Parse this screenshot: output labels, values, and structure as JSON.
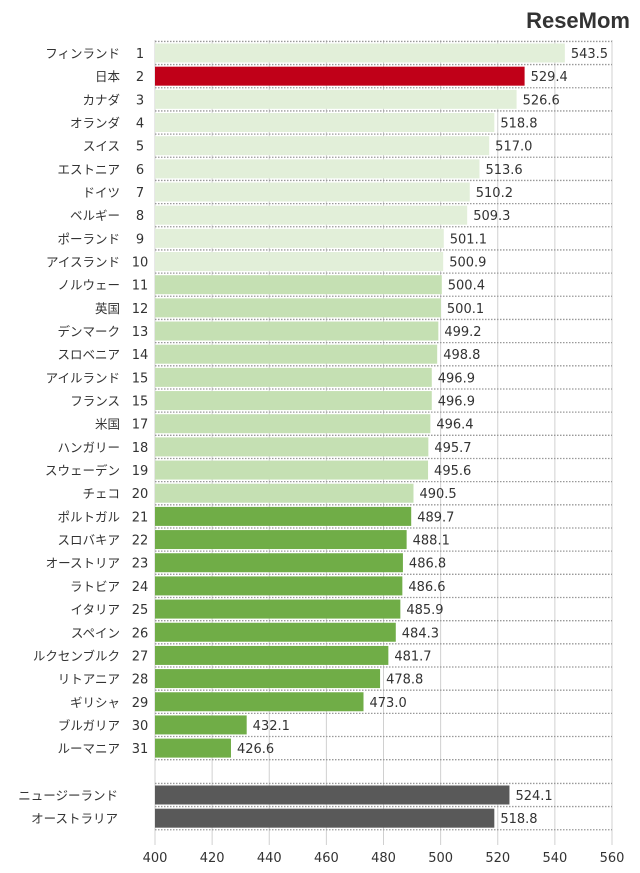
{
  "chart_data": {
    "type": "bar",
    "orientation": "horizontal",
    "xlim": [
      400,
      560
    ],
    "xticks": [
      400,
      420,
      440,
      460,
      480,
      500,
      520,
      540,
      560
    ],
    "grid": true,
    "colors": {
      "top": "#e2efd9",
      "mid": "#c5e0b3",
      "low": "#70ad47",
      "japan": "#c00018",
      "reference": "#595959"
    },
    "rows": [
      {
        "name": "フィンランド",
        "rank": "1",
        "value": 543.5,
        "label": "543.5",
        "group": "top"
      },
      {
        "name": "日本",
        "rank": "2",
        "value": 529.4,
        "label": "529.4",
        "group": "japan"
      },
      {
        "name": "カナダ",
        "rank": "3",
        "value": 526.6,
        "label": "526.6",
        "group": "top"
      },
      {
        "name": "オランダ",
        "rank": "4",
        "value": 518.8,
        "label": "518.8",
        "group": "top"
      },
      {
        "name": "スイス",
        "rank": "5",
        "value": 517.0,
        "label": "517.0",
        "group": "top"
      },
      {
        "name": "エストニア",
        "rank": "6",
        "value": 513.6,
        "label": "513.6",
        "group": "top"
      },
      {
        "name": "ドイツ",
        "rank": "7",
        "value": 510.2,
        "label": "510.2",
        "group": "top"
      },
      {
        "name": "ベルギー",
        "rank": "8",
        "value": 509.3,
        "label": "509.3",
        "group": "top"
      },
      {
        "name": "ポーランド",
        "rank": "9",
        "value": 501.1,
        "label": "501.1",
        "group": "top"
      },
      {
        "name": "アイスランド",
        "rank": "10",
        "value": 500.9,
        "label": "500.9",
        "group": "top"
      },
      {
        "name": "ノルウェー",
        "rank": "11",
        "value": 500.4,
        "label": "500.4",
        "group": "mid"
      },
      {
        "name": "英国",
        "rank": "12",
        "value": 500.1,
        "label": "500.1",
        "group": "mid"
      },
      {
        "name": "デンマーク",
        "rank": "13",
        "value": 499.2,
        "label": "499.2",
        "group": "mid"
      },
      {
        "name": "スロベニア",
        "rank": "14",
        "value": 498.8,
        "label": "498.8",
        "group": "mid"
      },
      {
        "name": "アイルランド",
        "rank": "15",
        "value": 496.9,
        "label": "496.9",
        "group": "mid"
      },
      {
        "name": "フランス",
        "rank": "15",
        "value": 496.9,
        "label": "496.9",
        "group": "mid"
      },
      {
        "name": "米国",
        "rank": "17",
        "value": 496.4,
        "label": "496.4",
        "group": "mid"
      },
      {
        "name": "ハンガリー",
        "rank": "18",
        "value": 495.7,
        "label": "495.7",
        "group": "mid"
      },
      {
        "name": "スウェーデン",
        "rank": "19",
        "value": 495.6,
        "label": "495.6",
        "group": "mid"
      },
      {
        "name": "チェコ",
        "rank": "20",
        "value": 490.5,
        "label": "490.5",
        "group": "mid"
      },
      {
        "name": "ポルトガル",
        "rank": "21",
        "value": 489.7,
        "label": "489.7",
        "group": "low"
      },
      {
        "name": "スロバキア",
        "rank": "22",
        "value": 488.1,
        "label": "488.1",
        "group": "low"
      },
      {
        "name": "オーストリア",
        "rank": "23",
        "value": 486.8,
        "label": "486.8",
        "group": "low"
      },
      {
        "name": "ラトビア",
        "rank": "24",
        "value": 486.6,
        "label": "486.6",
        "group": "low"
      },
      {
        "name": "イタリア",
        "rank": "25",
        "value": 485.9,
        "label": "485.9",
        "group": "low"
      },
      {
        "name": "スペイン",
        "rank": "26",
        "value": 484.3,
        "label": "484.3",
        "group": "low"
      },
      {
        "name": "ルクセンブルク",
        "rank": "27",
        "value": 481.7,
        "label": "481.7",
        "group": "low"
      },
      {
        "name": "リトアニア",
        "rank": "28",
        "value": 478.8,
        "label": "478.8",
        "group": "low"
      },
      {
        "name": "ギリシャ",
        "rank": "29",
        "value": 473.0,
        "label": "473.0",
        "group": "low"
      },
      {
        "name": "ブルガリア",
        "rank": "30",
        "value": 432.1,
        "label": "432.1",
        "group": "low"
      },
      {
        "name": "ルーマニア",
        "rank": "31",
        "value": 426.6,
        "label": "426.6",
        "group": "low"
      }
    ],
    "reference_rows": [
      {
        "name": "ニュージーランド",
        "value": 524.1,
        "label": "524.1",
        "group": "reference"
      },
      {
        "name": "オーストラリア",
        "value": 518.8,
        "label": "518.8",
        "group": "reference"
      }
    ]
  },
  "watermark": "ReseMom"
}
